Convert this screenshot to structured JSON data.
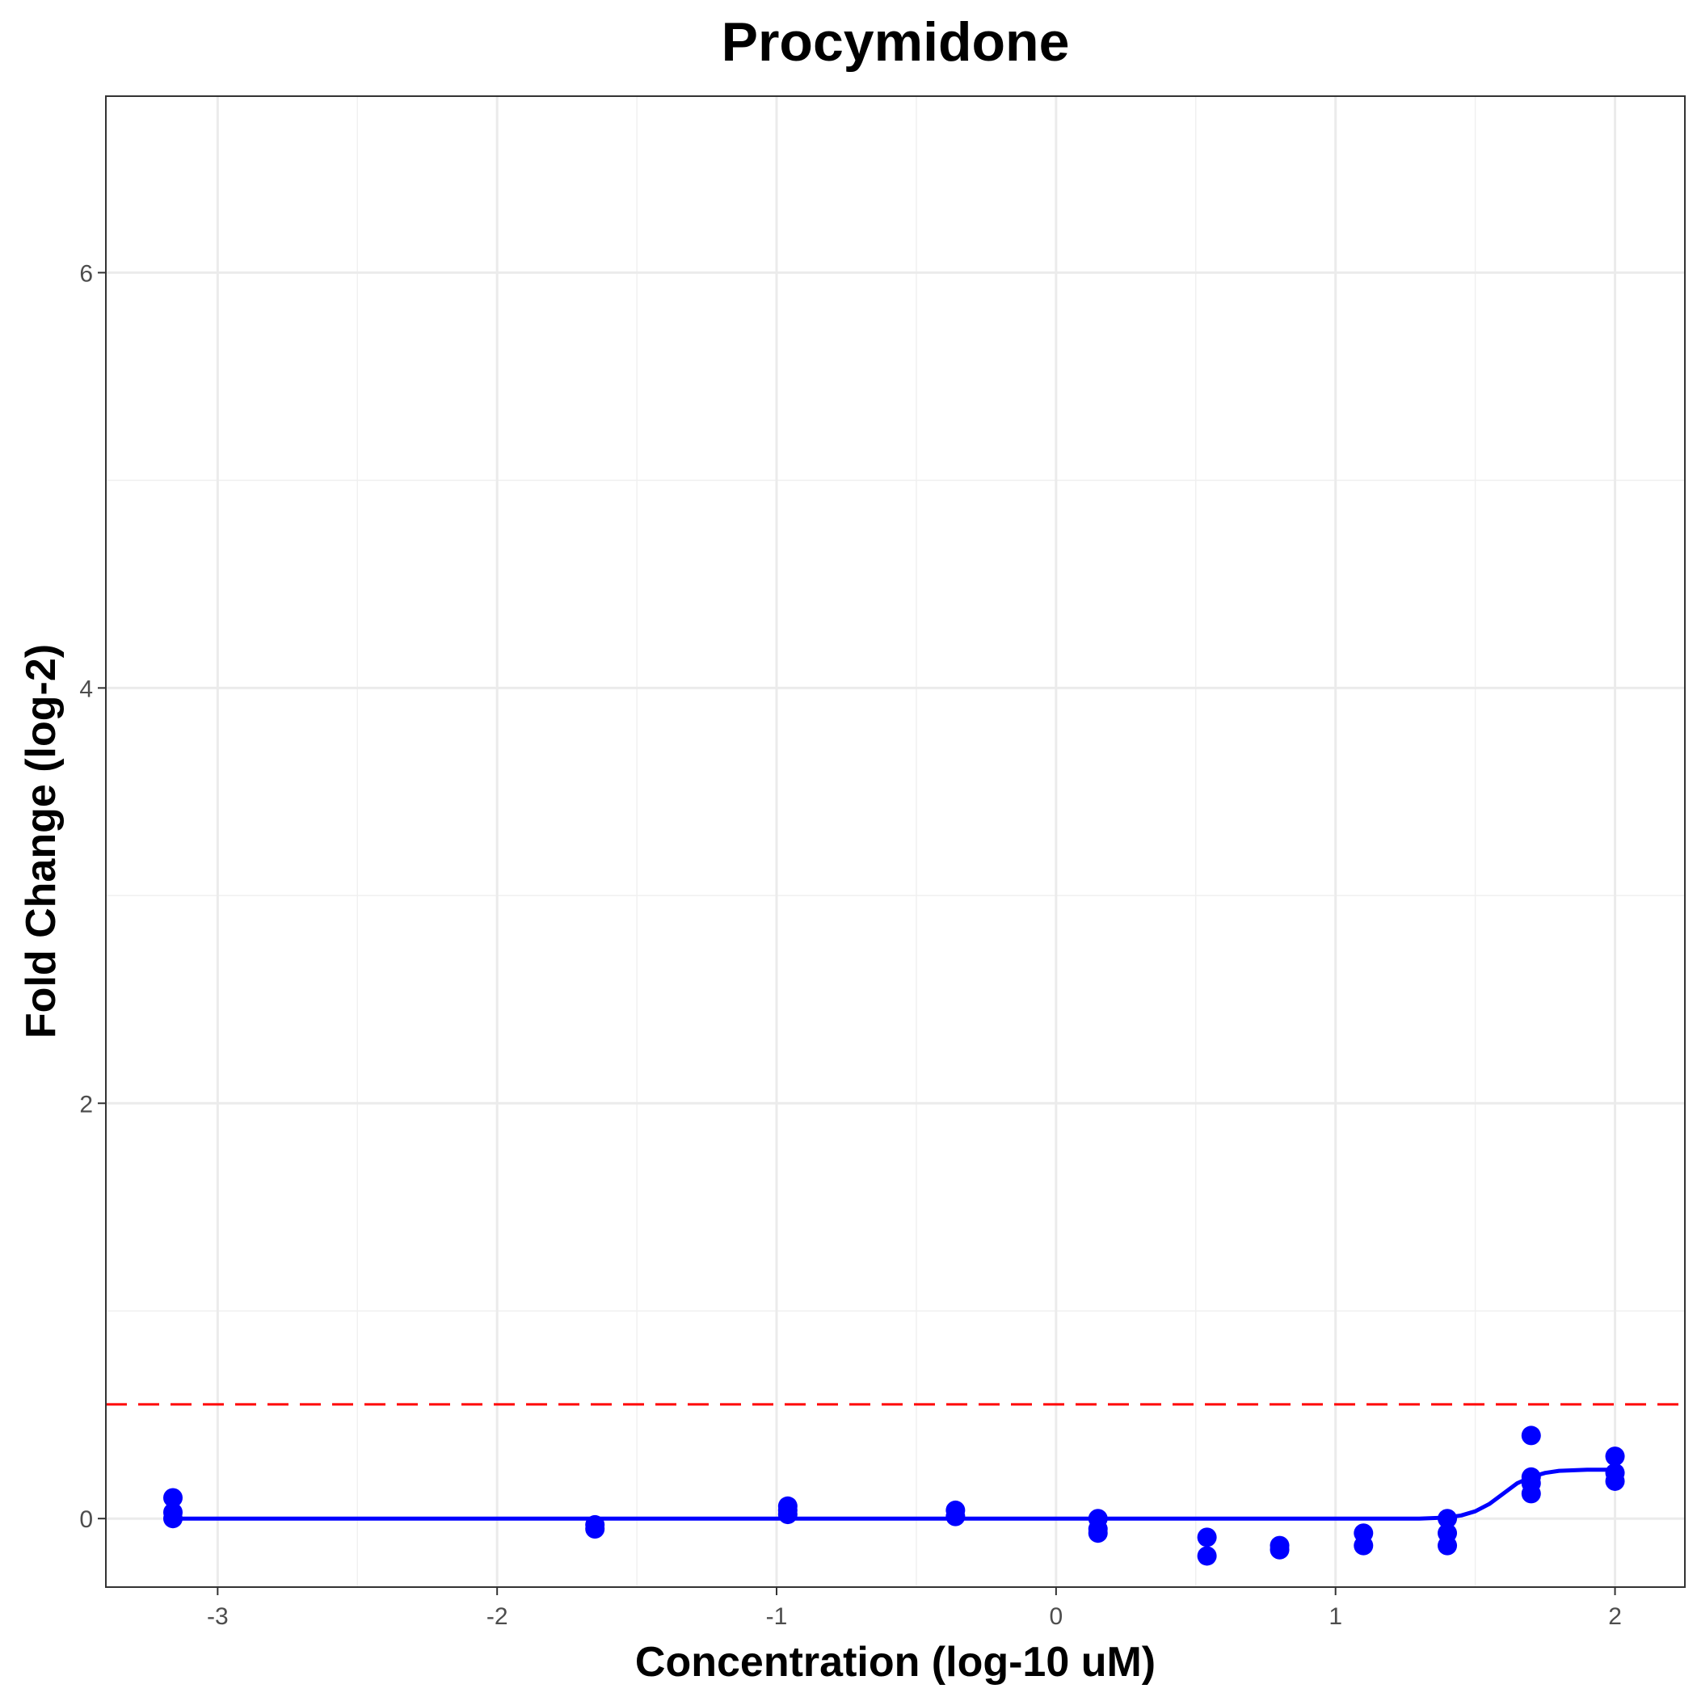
{
  "chart_data": {
    "type": "scatter",
    "title": "Procymidone",
    "xlabel": "Concentration (log-10 uM)",
    "ylabel": "Fold Change (log-2)",
    "xlim": [
      -3.4,
      2.25
    ],
    "ylim": [
      -0.33,
      6.85
    ],
    "x_ticks": [
      -3,
      -2,
      -1,
      0,
      1,
      2
    ],
    "y_ticks": [
      0,
      2,
      4,
      6
    ],
    "grid": true,
    "threshold": {
      "y": 0.55,
      "color": "#ff0000",
      "style": "dashed"
    },
    "series": [
      {
        "kind": "points",
        "color": "#0000ff",
        "points": [
          [
            -3.16,
            0.1
          ],
          [
            -3.16,
            0.03
          ],
          [
            -3.16,
            0.0
          ],
          [
            -1.65,
            -0.03
          ],
          [
            -1.65,
            -0.05
          ],
          [
            -0.96,
            0.06
          ],
          [
            -0.96,
            0.04
          ],
          [
            -0.96,
            0.02
          ],
          [
            -0.36,
            0.04
          ],
          [
            -0.36,
            0.01
          ],
          [
            0.15,
            0.0
          ],
          [
            0.15,
            -0.05
          ],
          [
            0.15,
            -0.07
          ],
          [
            0.54,
            -0.09
          ],
          [
            0.54,
            -0.18
          ],
          [
            0.8,
            -0.13
          ],
          [
            0.8,
            -0.15
          ],
          [
            1.1,
            -0.07
          ],
          [
            1.1,
            -0.13
          ],
          [
            1.4,
            0.0
          ],
          [
            1.4,
            -0.07
          ],
          [
            1.4,
            -0.13
          ],
          [
            1.7,
            0.4
          ],
          [
            1.7,
            0.2
          ],
          [
            1.7,
            0.17
          ],
          [
            1.7,
            0.12
          ],
          [
            2.0,
            0.3
          ],
          [
            2.0,
            0.22
          ],
          [
            2.0,
            0.18
          ]
        ]
      },
      {
        "kind": "line",
        "color": "#0000ff",
        "points": [
          [
            -3.16,
            0.0
          ],
          [
            1.3,
            0.0
          ],
          [
            1.4,
            0.005
          ],
          [
            1.45,
            0.015
          ],
          [
            1.5,
            0.035
          ],
          [
            1.55,
            0.07
          ],
          [
            1.6,
            0.12
          ],
          [
            1.65,
            0.17
          ],
          [
            1.7,
            0.2
          ],
          [
            1.75,
            0.22
          ],
          [
            1.8,
            0.23
          ],
          [
            1.9,
            0.235
          ],
          [
            2.0,
            0.235
          ]
        ]
      }
    ]
  }
}
